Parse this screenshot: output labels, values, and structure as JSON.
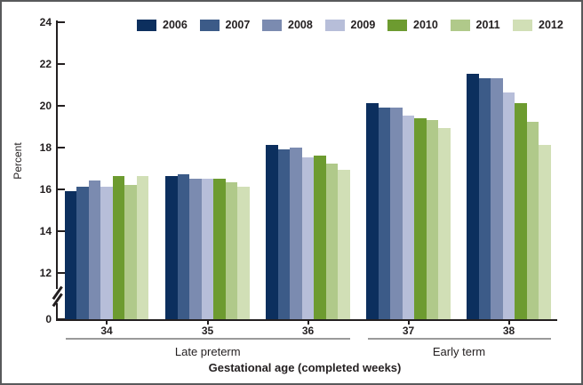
{
  "chart_data": {
    "type": "bar",
    "title": "",
    "ylabel": "Percent",
    "xlabel": "Gestational age (completed weeks)",
    "y_ticks": [
      24,
      22,
      20,
      18,
      16,
      14,
      12,
      0
    ],
    "y_axis_break_between": [
      0,
      12
    ],
    "ylim": [
      0,
      24
    ],
    "grid": false,
    "legend_position": "top",
    "categories": [
      "34",
      "35",
      "36",
      "37",
      "38"
    ],
    "category_groups": [
      {
        "label": "Late preterm",
        "categories": [
          "34",
          "35",
          "36"
        ]
      },
      {
        "label": "Early term",
        "categories": [
          "37",
          "38"
        ]
      }
    ],
    "series": [
      {
        "name": "2006",
        "color": "#0c2f5e",
        "values": [
          15.9,
          16.6,
          18.1,
          20.1,
          21.5
        ]
      },
      {
        "name": "2007",
        "color": "#3c5b88",
        "values": [
          16.1,
          16.7,
          17.9,
          19.9,
          21.3
        ]
      },
      {
        "name": "2008",
        "color": "#7b8bb0",
        "values": [
          16.4,
          16.5,
          18.0,
          19.9,
          21.3
        ]
      },
      {
        "name": "2009",
        "color": "#b7bed9",
        "values": [
          16.1,
          16.5,
          17.5,
          19.5,
          20.6
        ]
      },
      {
        "name": "2010",
        "color": "#6d9b30",
        "values": [
          16.6,
          16.5,
          17.6,
          19.4,
          20.1
        ]
      },
      {
        "name": "2011",
        "color": "#b0c98a",
        "values": [
          16.2,
          16.3,
          17.2,
          19.3,
          19.2
        ]
      },
      {
        "name": "2012",
        "color": "#d1dfb6",
        "values": [
          16.6,
          16.1,
          16.9,
          18.9,
          18.1
        ]
      }
    ]
  }
}
